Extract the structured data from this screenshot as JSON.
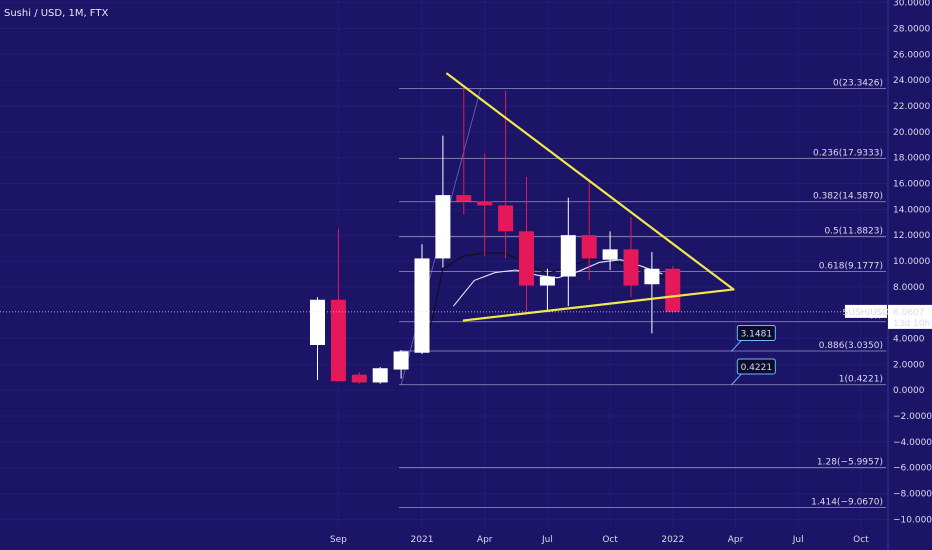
{
  "header": {
    "title": "Sushi / USD, 1M, FTX"
  },
  "colors": {
    "background": "#1c1466",
    "up": "#ffffff",
    "down": "#e5195a",
    "trendline": "#f1e84a",
    "fib": "#b6b3e0",
    "price_line": "#d8d8f0"
  },
  "chart_data": {
    "type": "candlestick",
    "symbol": "SUSHIUSD",
    "last_price": "6.0607",
    "countdown": "13d 10h",
    "ylim": [
      -10,
      30
    ],
    "y_ticks": [
      {
        "v": 30,
        "label": "30.0000"
      },
      {
        "v": 28,
        "label": "28.0000"
      },
      {
        "v": 26,
        "label": "26.0000"
      },
      {
        "v": 24,
        "label": "24.0000"
      },
      {
        "v": 22,
        "label": "22.0000"
      },
      {
        "v": 20,
        "label": "20.0000"
      },
      {
        "v": 18,
        "label": "18.0000"
      },
      {
        "v": 16,
        "label": "16.0000"
      },
      {
        "v": 14,
        "label": "14.0000"
      },
      {
        "v": 12,
        "label": "12.0000"
      },
      {
        "v": 10,
        "label": "10.0000"
      },
      {
        "v": 8,
        "label": "8.0000"
      },
      {
        "v": 4,
        "label": "4.0000"
      },
      {
        "v": 2,
        "label": "2.0000"
      },
      {
        "v": 0,
        "label": "0.0000"
      },
      {
        "v": -2,
        "label": "−2.0000"
      },
      {
        "v": -4,
        "label": "−4.0000"
      },
      {
        "v": -6,
        "label": "−6.0000"
      },
      {
        "v": -8,
        "label": "−8.0000"
      },
      {
        "v": -10,
        "label": "−10.0000"
      }
    ],
    "x_ticks": [
      {
        "i": 1,
        "label": "Sep"
      },
      {
        "i": 5,
        "label": "2021"
      },
      {
        "i": 8,
        "label": "Apr"
      },
      {
        "i": 11,
        "label": "Jul"
      },
      {
        "i": 14,
        "label": "Oct"
      },
      {
        "i": 17,
        "label": "2022"
      },
      {
        "i": 20,
        "label": "Apr"
      },
      {
        "i": 23,
        "label": "Jul"
      },
      {
        "i": 26,
        "label": "Oct"
      }
    ],
    "candles": [
      {
        "i": 0,
        "o": 3.5,
        "h": 7.2,
        "l": 0.8,
        "c": 7.0
      },
      {
        "i": 1,
        "o": 7.0,
        "h": 12.5,
        "l": 0.8,
        "c": 0.7
      },
      {
        "i": 2,
        "o": 1.2,
        "h": 1.4,
        "l": 0.5,
        "c": 0.6
      },
      {
        "i": 3,
        "o": 0.6,
        "h": 1.8,
        "l": 0.5,
        "c": 1.7
      },
      {
        "i": 4,
        "o": 1.6,
        "h": 3.1,
        "l": 0.9,
        "c": 3.0
      },
      {
        "i": 5,
        "o": 2.9,
        "h": 11.3,
        "l": 2.8,
        "c": 10.2
      },
      {
        "i": 6,
        "o": 10.2,
        "h": 19.7,
        "l": 9.5,
        "c": 15.1
      },
      {
        "i": 7,
        "o": 15.1,
        "h": 23.5,
        "l": 13.6,
        "c": 14.6
      },
      {
        "i": 8,
        "o": 14.6,
        "h": 18.3,
        "l": 10.4,
        "c": 14.3
      },
      {
        "i": 9,
        "o": 14.3,
        "h": 23.2,
        "l": 10.2,
        "c": 12.3
      },
      {
        "i": 10,
        "o": 12.3,
        "h": 16.5,
        "l": 6.1,
        "c": 8.1
      },
      {
        "i": 11,
        "o": 8.1,
        "h": 9.4,
        "l": 6.1,
        "c": 8.8
      },
      {
        "i": 12,
        "o": 8.8,
        "h": 14.9,
        "l": 6.5,
        "c": 12.0
      },
      {
        "i": 13,
        "o": 12.0,
        "h": 16.1,
        "l": 8.5,
        "c": 10.2
      },
      {
        "i": 14,
        "o": 10.1,
        "h": 12.3,
        "l": 9.3,
        "c": 10.9
      },
      {
        "i": 15,
        "o": 10.9,
        "h": 13.4,
        "l": 7.2,
        "c": 8.1
      },
      {
        "i": 16,
        "o": 8.2,
        "h": 10.7,
        "l": 4.4,
        "c": 9.4
      },
      {
        "i": 17,
        "o": 9.4,
        "h": 9.6,
        "l": 6.0,
        "c": 6.06
      }
    ],
    "moving_average_1": [
      {
        "i": 5,
        "v": 3.0
      },
      {
        "i": 5.5,
        "v": 5.5
      },
      {
        "i": 6,
        "v": 9.4
      },
      {
        "i": 7,
        "v": 10.4
      },
      {
        "i": 8,
        "v": 10.6
      },
      {
        "i": 9,
        "v": 10.6
      },
      {
        "i": 10,
        "v": 9.8
      },
      {
        "i": 11,
        "v": 9.0
      },
      {
        "i": 12,
        "v": 9.6
      },
      {
        "i": 13,
        "v": 10.1
      },
      {
        "i": 14,
        "v": 10.1
      },
      {
        "i": 15,
        "v": 9.5
      },
      {
        "i": 16,
        "v": 8.9
      },
      {
        "i": 17,
        "v": 8.6
      }
    ],
    "moving_average_2": [
      {
        "i": 6.5,
        "v": 6.5
      },
      {
        "i": 7.5,
        "v": 8.5
      },
      {
        "i": 8.5,
        "v": 9.1
      },
      {
        "i": 9.5,
        "v": 9.3
      },
      {
        "i": 10.5,
        "v": 8.9
      },
      {
        "i": 11.5,
        "v": 8.7
      },
      {
        "i": 12.5,
        "v": 9.2
      },
      {
        "i": 13.5,
        "v": 9.9
      },
      {
        "i": 14.5,
        "v": 10.1
      },
      {
        "i": 15.5,
        "v": 9.6
      },
      {
        "i": 16.5,
        "v": 9.0
      }
    ],
    "fib_levels": [
      {
        "v": 23.3426,
        "label": "0(23.3426)"
      },
      {
        "v": 17.9333,
        "label": "0.236(17.9333)"
      },
      {
        "v": 14.587,
        "label": "0.382(14.5870)"
      },
      {
        "v": 11.8823,
        "label": "0.5(11.8823)"
      },
      {
        "v": 9.1777,
        "label": "0.618(9.1777)"
      },
      {
        "v": 5.3,
        "label": "0.7"
      },
      {
        "v": 3.035,
        "label": "0.886(3.0350)"
      },
      {
        "v": 0.4221,
        "label": "1(0.4221)"
      },
      {
        "v": -5.9957,
        "label": "1.28(−5.9957)"
      },
      {
        "v": -9.067,
        "label": "1.414(−9.0670)"
      }
    ],
    "fib_start_index": 4,
    "trendlines": [
      {
        "x1": 6.2,
        "y1": 24.5,
        "x2": 19.9,
        "y2": 7.8
      },
      {
        "x1": 7.0,
        "y1": 5.4,
        "x2": 19.9,
        "y2": 7.8
      }
    ],
    "fib_connector": {
      "x1": 4.0,
      "y1": 0.42,
      "x2": 7.8,
      "y2": 23.3
    },
    "callouts": [
      {
        "label": "3.1481",
        "anchor_i": 19.8,
        "anchor_v": 3.0
      },
      {
        "label": "0.4221",
        "anchor_i": 19.8,
        "anchor_v": 0.4
      }
    ]
  }
}
